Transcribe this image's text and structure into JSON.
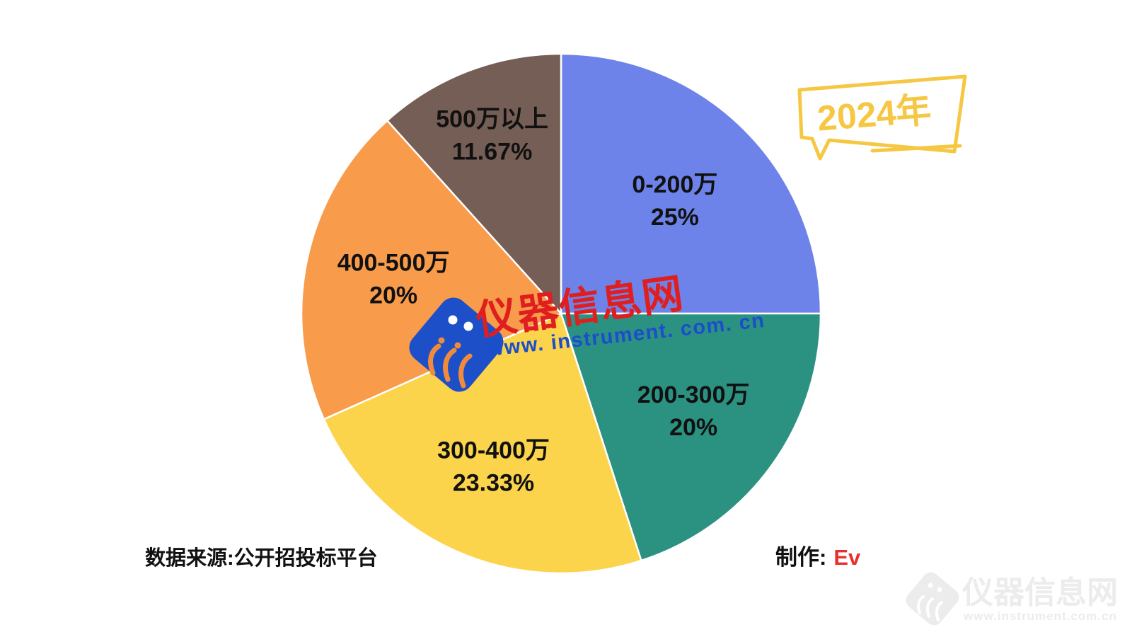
{
  "chart_data": {
    "type": "pie",
    "title": "",
    "legend": "none",
    "start_angle_deg": 0,
    "clockwise": true,
    "label_text_color": "#111111",
    "separator_color": "#ffffff",
    "categories": [
      "0-200万",
      "200-300万",
      "300-400万",
      "400-500万",
      "500万以上"
    ],
    "values": [
      25,
      20,
      23.33,
      20,
      11.67
    ],
    "slices": [
      {
        "label": "0-200万",
        "pct_label": "25%",
        "value": 25,
        "color": "#6D83E9",
        "label_r": 0.62
      },
      {
        "label": "200-300万",
        "pct_label": "20%",
        "value": 20,
        "color": "#2B9181",
        "label_r": 0.63
      },
      {
        "label": "300-400万",
        "pct_label": "23.33%",
        "value": 23.33,
        "color": "#FBD44C",
        "label_r": 0.64
      },
      {
        "label": "400-500万",
        "pct_label": "20%",
        "value": 20,
        "color": "#F89B4B",
        "label_r": 0.66
      },
      {
        "label": "500万以上",
        "pct_label": "11.67%",
        "value": 11.67,
        "color": "#755E56",
        "label_r": 0.74
      }
    ]
  },
  "callout": {
    "label": "2024年",
    "color": "#F5C742"
  },
  "watermark_center": {
    "title": "仪器信息网",
    "url": "www. instrument. com. cn",
    "title_color": "#DF1F1F",
    "url_color": "#1B4ECC",
    "logo_color": "#1D50C8",
    "logo_squiggle_color": "#F08A3C"
  },
  "watermark_corner": {
    "title": "仪器信息网",
    "url": "www.instrument.com.cn",
    "color": "#ECECEC"
  },
  "footer": {
    "source": "数据来源:公开招投标平台",
    "credit_label": "制作:",
    "credit_value": "Ev",
    "credit_value_color": "#E8312A"
  }
}
